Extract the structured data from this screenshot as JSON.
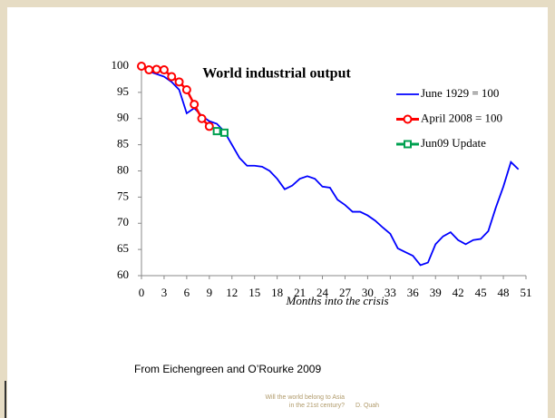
{
  "chart_data": {
    "type": "line",
    "title": "World industrial output",
    "xlabel": "Months into the crisis",
    "xlim": [
      0,
      51
    ],
    "xticks": [
      0,
      3,
      6,
      9,
      12,
      15,
      18,
      21,
      24,
      27,
      30,
      33,
      36,
      39,
      42,
      45,
      48,
      51
    ],
    "ylim": [
      60,
      100
    ],
    "yticks": [
      60,
      65,
      70,
      75,
      80,
      85,
      90,
      95,
      100
    ],
    "legend": "upper right",
    "series": [
      {
        "name": "June 1929 = 100",
        "color": "#0000ff",
        "marker": "none",
        "x": [
          0,
          1,
          2,
          3,
          4,
          5,
          6,
          7,
          8,
          9,
          10,
          11,
          12,
          13,
          14,
          15,
          16,
          17,
          18,
          19,
          20,
          21,
          22,
          23,
          24,
          25,
          26,
          27,
          28,
          29,
          30,
          31,
          32,
          33,
          34,
          35,
          36,
          37,
          38,
          39,
          40,
          41,
          42,
          43,
          44,
          45,
          46,
          47,
          48,
          49,
          50
        ],
        "values": [
          100,
          99,
          98.5,
          98,
          97,
          95.5,
          91,
          92,
          90.5,
          89.5,
          89,
          87.5,
          85,
          82.5,
          81,
          81,
          80.8,
          80,
          78.5,
          76.5,
          77.2,
          78.5,
          79,
          78.5,
          77,
          76.8,
          74.5,
          73.5,
          72.2,
          72.2,
          71.5,
          70.5,
          69.2,
          68,
          65.2,
          64.5,
          63.8,
          62,
          62.5,
          66,
          67.5,
          68.3,
          66.8,
          66,
          66.8,
          67,
          68.5,
          73,
          77,
          81.7,
          80.3
        ]
      },
      {
        "name": "April 2008 = 100",
        "color": "#ff0000",
        "marker": "circle",
        "x": [
          0,
          1,
          2,
          3,
          4,
          5,
          6,
          7,
          8,
          9
        ],
        "values": [
          100,
          99.3,
          99.4,
          99.3,
          98,
          97,
          95.5,
          92.7,
          90,
          88.5
        ]
      },
      {
        "name": "Jun09 Update",
        "color": "#00a050",
        "marker": "square",
        "x": [
          10,
          11
        ],
        "values": [
          87.6,
          87.3
        ]
      }
    ]
  },
  "source": "From Eichengreen and O’Rourke 2009",
  "footer": {
    "line1": "Will the world belong to Asia",
    "line2": "in the 21st century?",
    "author": "D. Quah"
  }
}
